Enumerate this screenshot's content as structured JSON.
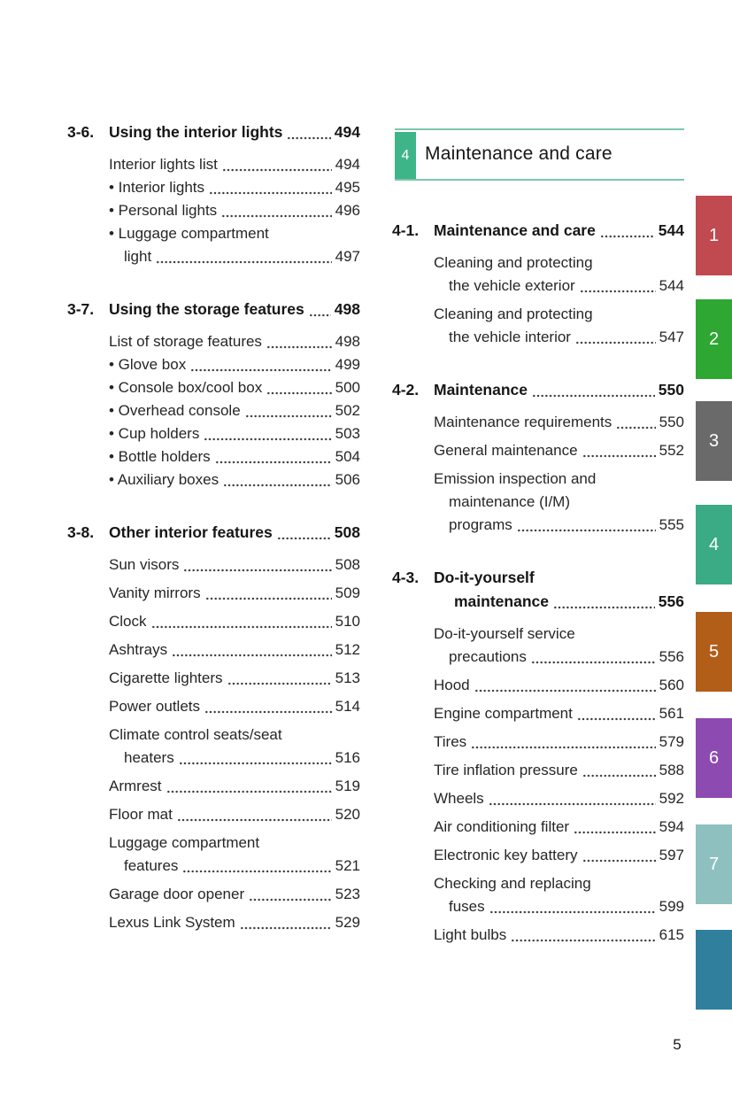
{
  "page": {
    "number": "5"
  },
  "left": {
    "sections": [
      {
        "id": "3-6.",
        "title_lines": [
          "Using the interior lights"
        ],
        "page": "494",
        "compact": true,
        "items": [
          {
            "lines": [
              "Interior lights list"
            ],
            "page": "494"
          },
          {
            "lines": [
              "Interior lights"
            ],
            "page": "495",
            "bullet": true
          },
          {
            "lines": [
              "Personal lights"
            ],
            "page": "496",
            "bullet": true
          },
          {
            "lines": [
              "Luggage compartment",
              "light"
            ],
            "page": "497",
            "bullet": true
          }
        ]
      },
      {
        "id": "3-7.",
        "title_lines": [
          "Using the storage features"
        ],
        "page": "498",
        "compact": true,
        "items": [
          {
            "lines": [
              "List of storage features"
            ],
            "page": "498"
          },
          {
            "lines": [
              "Glove box"
            ],
            "page": "499",
            "bullet": true
          },
          {
            "lines": [
              "Console box/cool box"
            ],
            "page": "500",
            "bullet": true
          },
          {
            "lines": [
              "Overhead console"
            ],
            "page": "502",
            "bullet": true
          },
          {
            "lines": [
              "Cup holders"
            ],
            "page": "503",
            "bullet": true
          },
          {
            "lines": [
              "Bottle holders"
            ],
            "page": "504",
            "bullet": true
          },
          {
            "lines": [
              "Auxiliary boxes"
            ],
            "page": "506",
            "bullet": true
          }
        ]
      },
      {
        "id": "3-8.",
        "title_lines": [
          "Other interior features"
        ],
        "page": "508",
        "compact": false,
        "items": [
          {
            "lines": [
              "Sun visors"
            ],
            "page": "508"
          },
          {
            "lines": [
              "Vanity mirrors"
            ],
            "page": "509"
          },
          {
            "lines": [
              "Clock"
            ],
            "page": "510"
          },
          {
            "lines": [
              "Ashtrays"
            ],
            "page": "512"
          },
          {
            "lines": [
              "Cigarette lighters"
            ],
            "page": "513"
          },
          {
            "lines": [
              "Power outlets"
            ],
            "page": "514"
          },
          {
            "lines": [
              "Climate control seats/seat",
              "heaters"
            ],
            "page": "516"
          },
          {
            "lines": [
              "Armrest"
            ],
            "page": "519"
          },
          {
            "lines": [
              "Floor mat"
            ],
            "page": "520"
          },
          {
            "lines": [
              "Luggage compartment",
              "features"
            ],
            "page": "521"
          },
          {
            "lines": [
              "Garage door opener"
            ],
            "page": "523"
          },
          {
            "lines": [
              "Lexus Link System"
            ],
            "page": "529"
          }
        ]
      }
    ]
  },
  "right": {
    "banner": {
      "number": "4",
      "title": "Maintenance and care",
      "box_color": "#3eb489",
      "line_color": "#7dc6ac"
    },
    "sections": [
      {
        "id": "4-1.",
        "title_lines": [
          "Maintenance and care"
        ],
        "page": "544",
        "compact": false,
        "items": [
          {
            "lines": [
              "Cleaning and protecting",
              "the vehicle exterior"
            ],
            "page": "544"
          },
          {
            "lines": [
              "Cleaning and protecting",
              "the vehicle interior"
            ],
            "page": "547"
          }
        ]
      },
      {
        "id": "4-2.",
        "title_lines": [
          "Maintenance"
        ],
        "page": "550",
        "compact": false,
        "items": [
          {
            "lines": [
              "Maintenance requirements"
            ],
            "page": "550"
          },
          {
            "lines": [
              "General maintenance"
            ],
            "page": "552"
          },
          {
            "lines": [
              "Emission inspection and",
              "maintenance (I/M)",
              "programs"
            ],
            "page": "555"
          }
        ]
      },
      {
        "id": "4-3.",
        "title_lines": [
          "Do-it-yourself",
          "maintenance"
        ],
        "page": "556",
        "compact": false,
        "items": [
          {
            "lines": [
              "Do-it-yourself service",
              "precautions"
            ],
            "page": "556"
          },
          {
            "lines": [
              "Hood"
            ],
            "page": "560"
          },
          {
            "lines": [
              "Engine compartment"
            ],
            "page": "561"
          },
          {
            "lines": [
              "Tires"
            ],
            "page": "579"
          },
          {
            "lines": [
              "Tire inflation pressure"
            ],
            "page": "588"
          },
          {
            "lines": [
              "Wheels"
            ],
            "page": "592"
          },
          {
            "lines": [
              "Air conditioning filter"
            ],
            "page": "594"
          },
          {
            "lines": [
              "Electronic key battery"
            ],
            "page": "597"
          },
          {
            "lines": [
              "Checking and replacing",
              "fuses"
            ],
            "page": "599"
          },
          {
            "lines": [
              "Light bulbs"
            ],
            "page": "615"
          }
        ]
      }
    ]
  },
  "side_tabs": [
    {
      "label": "1",
      "color": "#c14950"
    },
    {
      "label": "2",
      "color": "#2fa733"
    },
    {
      "label": "3",
      "color": "#6a6a6a"
    },
    {
      "label": "4",
      "color": "#3bab85"
    },
    {
      "label": "5",
      "color": "#b25d18"
    },
    {
      "label": "6",
      "color": "#8d4ab1"
    },
    {
      "label": "7",
      "color": "#8fc0c0"
    },
    {
      "label": "",
      "color": "#2f7f9d"
    }
  ]
}
